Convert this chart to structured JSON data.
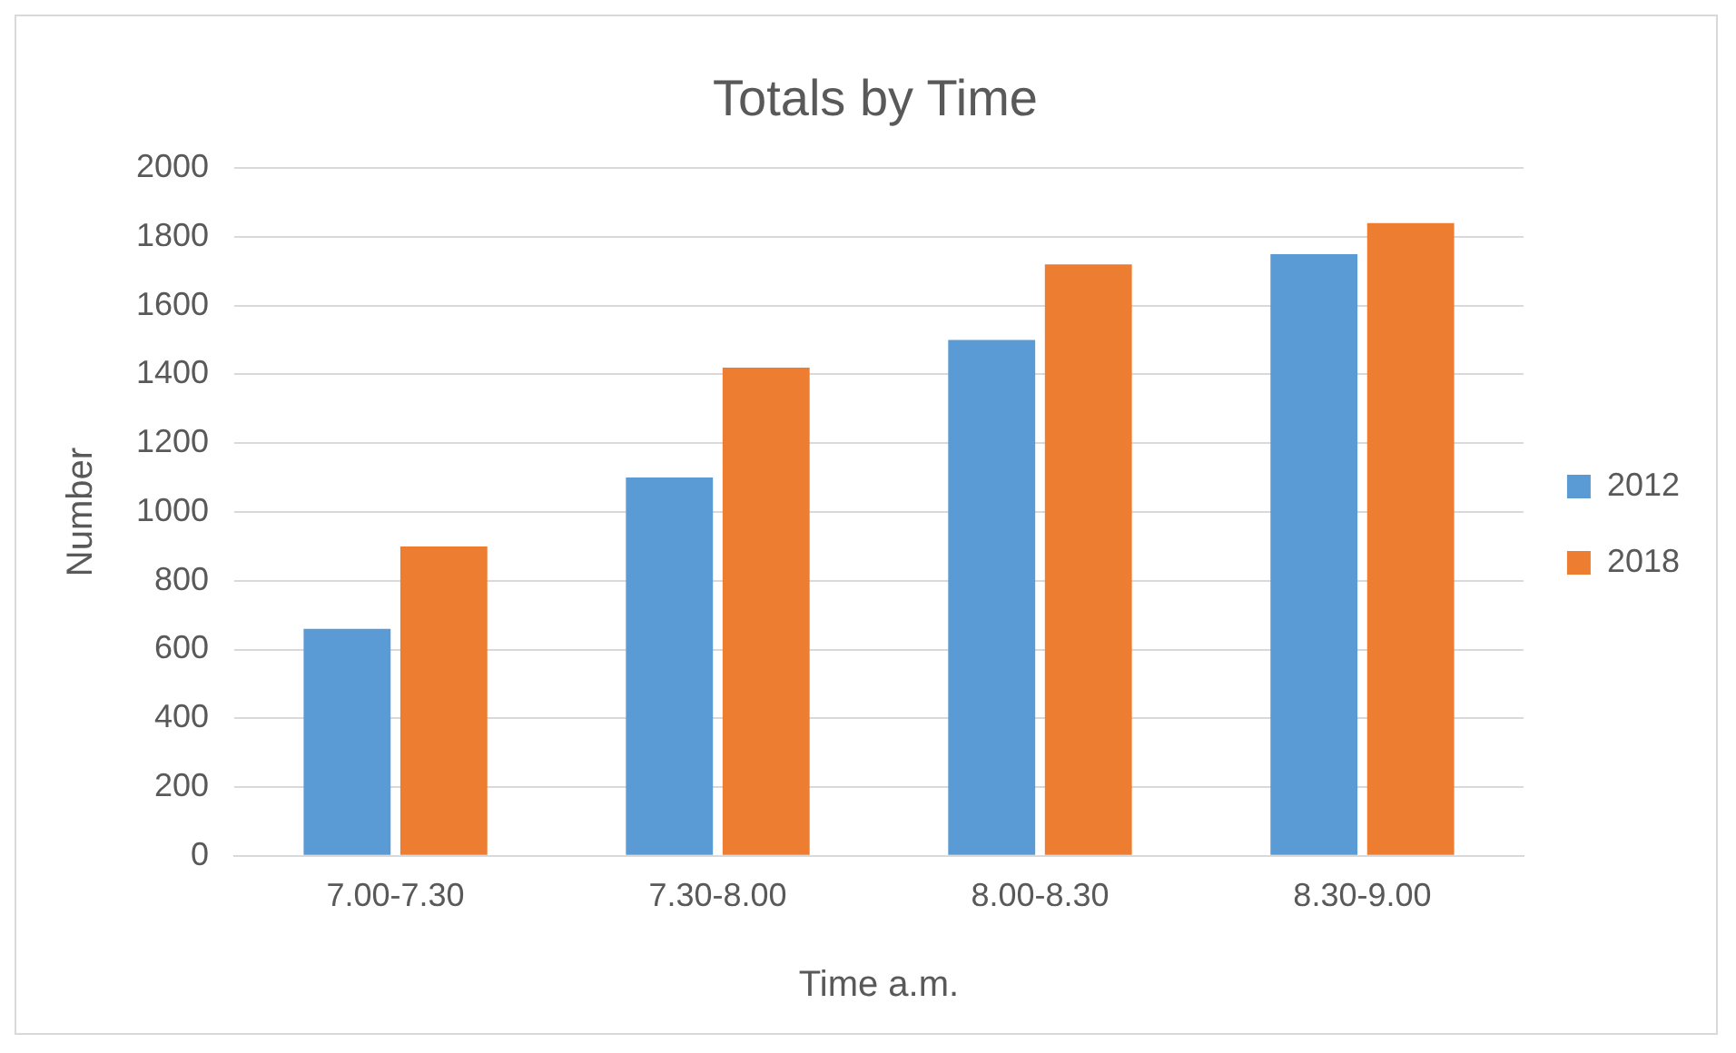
{
  "chart_data": {
    "type": "bar",
    "title": "Totals by Time",
    "xlabel": "Time a.m.",
    "ylabel": "Number",
    "categories": [
      "7.00-7.30",
      "7.30-8.00",
      "8.00-8.30",
      "8.30-9.00"
    ],
    "series": [
      {
        "name": "2012",
        "color": "#5b9bd5",
        "values": [
          660,
          1100,
          1500,
          1750
        ]
      },
      {
        "name": "2018",
        "color": "#ed7d31",
        "values": [
          900,
          1420,
          1720,
          1840
        ]
      }
    ],
    "ylim": [
      0,
      2000
    ],
    "yticks": [
      0,
      200,
      400,
      600,
      800,
      1000,
      1200,
      1400,
      1600,
      1800,
      2000
    ],
    "grid": "y",
    "legend": "right"
  }
}
